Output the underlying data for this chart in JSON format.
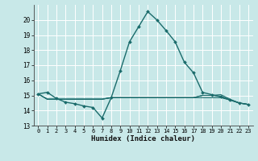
{
  "title": "",
  "xlabel": "Humidex (Indice chaleur)",
  "bg_color": "#c8e8e8",
  "grid_color": "#ffffff",
  "line_color": "#1a6b6b",
  "xlim": [
    -0.5,
    23.5
  ],
  "ylim": [
    13,
    21
  ],
  "yticks": [
    13,
    14,
    15,
    16,
    17,
    18,
    19,
    20
  ],
  "xticks": [
    0,
    1,
    2,
    3,
    4,
    5,
    6,
    7,
    8,
    9,
    10,
    11,
    12,
    13,
    14,
    15,
    16,
    17,
    18,
    19,
    20,
    21,
    22,
    23
  ],
  "series_main": {
    "x": [
      0,
      1,
      2,
      3,
      4,
      5,
      6,
      7,
      8,
      9,
      10,
      11,
      12,
      13,
      14,
      15,
      16,
      17,
      18,
      19,
      20,
      21,
      22,
      23
    ],
    "y": [
      15.1,
      15.2,
      14.8,
      14.55,
      14.45,
      14.3,
      14.2,
      13.5,
      14.85,
      16.65,
      18.55,
      19.55,
      20.55,
      20.0,
      19.3,
      18.55,
      17.2,
      16.5,
      15.2,
      15.05,
      14.9,
      14.7,
      14.5,
      14.4
    ]
  },
  "series_flat": [
    [
      15.1,
      14.75,
      14.75,
      14.75,
      14.75,
      14.75,
      14.75,
      14.75,
      14.85,
      14.85,
      14.85,
      14.85,
      14.85,
      14.85,
      14.85,
      14.85,
      14.85,
      14.85,
      14.85,
      14.85,
      14.85,
      14.7,
      14.5,
      14.4
    ],
    [
      15.1,
      14.75,
      14.75,
      14.75,
      14.75,
      14.75,
      14.75,
      14.75,
      14.85,
      14.85,
      14.85,
      14.85,
      14.85,
      14.85,
      14.85,
      14.85,
      14.85,
      14.85,
      15.0,
      15.0,
      14.95,
      14.7,
      14.5,
      14.4
    ],
    [
      15.1,
      14.75,
      14.75,
      14.75,
      14.75,
      14.75,
      14.75,
      14.75,
      14.85,
      14.85,
      14.85,
      14.85,
      14.85,
      14.85,
      14.85,
      14.85,
      14.85,
      14.85,
      15.0,
      15.0,
      15.05,
      14.75,
      14.5,
      14.4
    ]
  ]
}
